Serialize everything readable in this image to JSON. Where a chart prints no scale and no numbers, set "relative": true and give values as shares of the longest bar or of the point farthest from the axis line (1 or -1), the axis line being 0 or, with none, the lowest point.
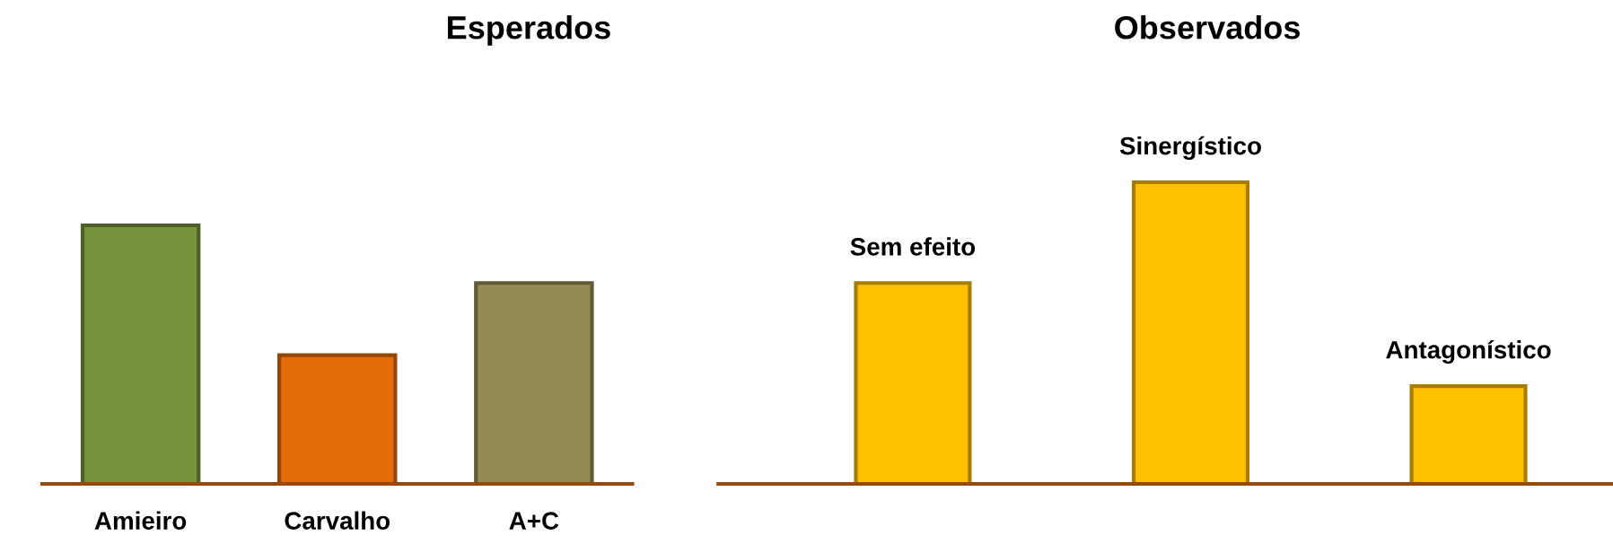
{
  "chart_data": [
    {
      "type": "bar",
      "title": "Esperados",
      "relative": true,
      "categories": [
        "Amieiro",
        "Carvalho",
        "A+C"
      ],
      "values": [
        1,
        0.498,
        0.777
      ],
      "colors": [
        "#77933c",
        "#e46c0a",
        "#948a54"
      ]
    },
    {
      "type": "bar",
      "title": "Observados",
      "relative": true,
      "tick_labels": false,
      "categories": [
        "Sem efeito",
        "Sinergístico",
        "Antagonístico"
      ],
      "values": [
        0.666,
        1,
        0.324
      ],
      "colors": [
        "#ffc000",
        "#ffc000",
        "#ffc000"
      ]
    }
  ]
}
